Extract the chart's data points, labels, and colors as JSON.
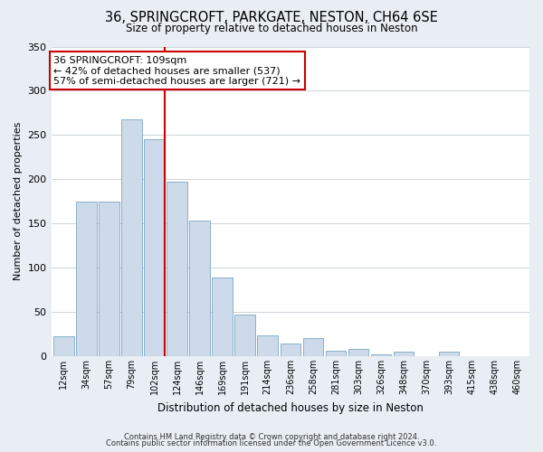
{
  "title_line1": "36, SPRINGCROFT, PARKGATE, NESTON, CH64 6SE",
  "title_line2": "Size of property relative to detached houses in Neston",
  "xlabel": "Distribution of detached houses by size in Neston",
  "ylabel": "Number of detached properties",
  "bar_labels": [
    "12sqm",
    "34sqm",
    "57sqm",
    "79sqm",
    "102sqm",
    "124sqm",
    "146sqm",
    "169sqm",
    "191sqm",
    "214sqm",
    "236sqm",
    "258sqm",
    "281sqm",
    "303sqm",
    "326sqm",
    "348sqm",
    "370sqm",
    "393sqm",
    "415sqm",
    "438sqm",
    "460sqm"
  ],
  "bar_values": [
    23,
    175,
    175,
    268,
    245,
    197,
    153,
    89,
    47,
    24,
    14,
    20,
    6,
    8,
    2,
    5,
    0,
    5,
    0,
    0,
    0
  ],
  "bar_color": "#ccdaea",
  "bar_edge_color": "#6699bb",
  "vline_x_index": 4,
  "vline_color": "#cc0000",
  "annotation_title": "36 SPRINGCROFT: 109sqm",
  "annotation_line1": "← 42% of detached houses are smaller (537)",
  "annotation_line2": "57% of semi-detached houses are larger (721) →",
  "annotation_box_facecolor": "#ffffff",
  "annotation_box_edgecolor": "#cc0000",
  "ylim": [
    0,
    350
  ],
  "yticks": [
    0,
    50,
    100,
    150,
    200,
    250,
    300,
    350
  ],
  "bg_color": "#e8eef4",
  "plot_bg_color": "#ffffff",
  "grid_color": "#c5cdd5",
  "title1_fontsize": 10.5,
  "title2_fontsize": 8.5,
  "ylabel_fontsize": 8,
  "xlabel_fontsize": 8.5,
  "tick_fontsize": 7,
  "annot_fontsize": 8,
  "footer_line1": "Contains HM Land Registry data © Crown copyright and database right 2024.",
  "footer_line2": "Contains public sector information licensed under the Open Government Licence v3.0.",
  "footer_fontsize": 6
}
